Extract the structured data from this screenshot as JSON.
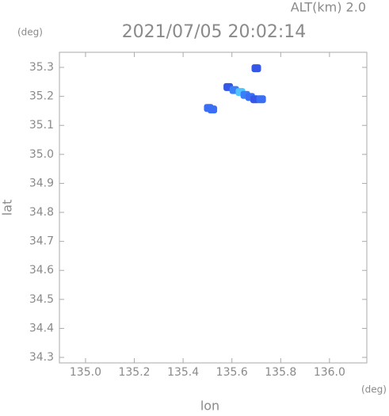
{
  "chart_data": {
    "type": "scatter",
    "title": "2021/07/05 20:02:14",
    "subtitle": "ALT(km) 2.0",
    "y_unit": "(deg)",
    "x_unit": "(deg)",
    "xlabel": "lon",
    "ylabel": "lat",
    "x": [
      135.7,
      135.505,
      135.52,
      135.585,
      135.61,
      135.635,
      135.655,
      135.675,
      135.695,
      135.72
    ],
    "values": [
      35.297,
      35.16,
      35.155,
      35.232,
      35.222,
      35.215,
      35.205,
      35.198,
      35.19,
      35.19
    ],
    "colors": [
      "#3457e8",
      "#3a6ef5",
      "#3a6ef5",
      "#3457e8",
      "#3a7ff8",
      "#4fc4ff",
      "#3a7ff8",
      "#3a6ef5",
      "#3457e8",
      "#3a6ef5"
    ],
    "xlim": [
      134.893,
      136.153
    ],
    "ylim": [
      34.281,
      35.352
    ],
    "xticks": [
      {
        "value": 135.0,
        "label": "135.0"
      },
      135.2,
      135.4,
      135.6,
      135.8,
      {
        "value": 136.0,
        "label": "136.0"
      }
    ],
    "yticks": [
      34.3,
      34.4,
      34.5,
      34.6,
      34.7,
      34.8,
      34.9,
      {
        "value": 35.0,
        "label": "35.0"
      },
      35.1,
      35.2,
      35.3
    ]
  }
}
